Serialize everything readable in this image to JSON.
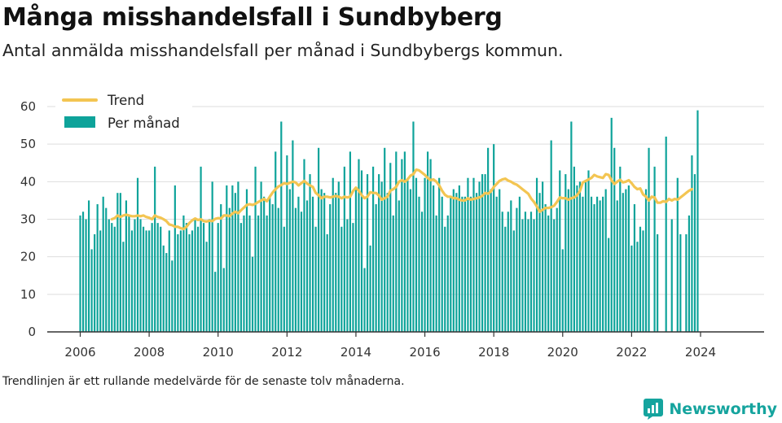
{
  "header": {
    "title": "Många misshandelsfall i Sundbyberg",
    "subtitle": "Antal anmälda misshandelsfall per månad i Sundbybergs kommun."
  },
  "footer": {
    "note": "Trendlinjen är ett rullande medelvärde för de senaste tolv månaderna.",
    "brand": "Newsworthy"
  },
  "colors": {
    "bar": "#0ea39a",
    "trend": "#f3c552",
    "grid": "#dddddd",
    "axis": "#333333",
    "brand": "#15a49e"
  },
  "icons": {
    "brand_logo": "newsworthy-logo-icon"
  },
  "chart_data": {
    "type": "bar",
    "title": "Många misshandelsfall i Sundbyberg",
    "ylim": [
      0,
      60
    ],
    "yticks": [
      0,
      10,
      20,
      30,
      40,
      50,
      60
    ],
    "xticks": [
      "2006",
      "2008",
      "2010",
      "2012",
      "2014",
      "2016",
      "2018",
      "2020",
      "2022",
      "2024"
    ],
    "x_start": "2006-01",
    "grid": "horizontal",
    "legend": {
      "placement": "top-left",
      "entries": [
        {
          "label": "Trend",
          "kind": "line"
        },
        {
          "label": "Per månad",
          "kind": "bar"
        }
      ]
    },
    "series": [
      {
        "name": "Per månad",
        "kind": "bar",
        "values": [
          31,
          32,
          30,
          35,
          22,
          26,
          34,
          27,
          36,
          33,
          30,
          29,
          28,
          37,
          37,
          24,
          35,
          31,
          27,
          30,
          41,
          30,
          28,
          27,
          27,
          29,
          44,
          29,
          28,
          23,
          21,
          27,
          19,
          39,
          26,
          27,
          31,
          29,
          26,
          27,
          30,
          28,
          44,
          29,
          24,
          30,
          40,
          16,
          29,
          34,
          17,
          39,
          33,
          39,
          37,
          40,
          29,
          31,
          38,
          31,
          20,
          44,
          31,
          40,
          36,
          31,
          36,
          34,
          48,
          33,
          56,
          28,
          47,
          38,
          51,
          33,
          36,
          32,
          46,
          35,
          42,
          36,
          28,
          49,
          38,
          37,
          26,
          34,
          41,
          37,
          40,
          28,
          44,
          30,
          48,
          29,
          38,
          46,
          43,
          17,
          42,
          23,
          44,
          34,
          42,
          40,
          49,
          37,
          45,
          31,
          48,
          35,
          46,
          48,
          41,
          38,
          56,
          41,
          36,
          32,
          41,
          48,
          46,
          39,
          31,
          41,
          36,
          28,
          31,
          36,
          38,
          37,
          39,
          36,
          36,
          41,
          36,
          41,
          37,
          40,
          42,
          42,
          49,
          38,
          50,
          36,
          38,
          32,
          28,
          32,
          35,
          27,
          33,
          36,
          30,
          32,
          30,
          32,
          30,
          41,
          37,
          40,
          34,
          31,
          51,
          30,
          33,
          43,
          22,
          42,
          38,
          56,
          44,
          39,
          40,
          36,
          40,
          43,
          36,
          34,
          36,
          35,
          36,
          38,
          25,
          57,
          49,
          35,
          44,
          37,
          38,
          39,
          23,
          34,
          24,
          28,
          27,
          38,
          49,
          0,
          44,
          26,
          0,
          0,
          52,
          0,
          30,
          0,
          41,
          26,
          0,
          26,
          31,
          47,
          42,
          59
        ]
      },
      {
        "name": "Trend",
        "kind": "line",
        "start_index": 11,
        "values": [
          30.0,
          30.3,
          31.0,
          30.6,
          31.0,
          31.2,
          31.0,
          30.8,
          30.8,
          31.0,
          30.8,
          31.0,
          30.6,
          30.4,
          30.0,
          31.0,
          30.6,
          30.4,
          30.0,
          29.5,
          28.6,
          28.4,
          28.0,
          28.0,
          27.6,
          27.4,
          28.0,
          29.0,
          29.7,
          30.2,
          29.8,
          30.0,
          29.5,
          29.4,
          29.6,
          29.5,
          30.1,
          30.3,
          30.2,
          31.0,
          31.0,
          30.8,
          31.5,
          32.0,
          31.6,
          32.4,
          33.1,
          33.8,
          34.0,
          33.8,
          34.1,
          34.6,
          35.0,
          35.4,
          34.8,
          36.0,
          37.1,
          38.0,
          38.7,
          39.1,
          39.6,
          39.4,
          39.7,
          40.0,
          39.8,
          39.0,
          39.6,
          40.2,
          39.5,
          39.0,
          38.6,
          37.0,
          36.4,
          35.6,
          36.0,
          36.0,
          35.8,
          36.0,
          36.2,
          36.0,
          35.6,
          36.0,
          35.8,
          36.0,
          37.5,
          38.4,
          37.6,
          36.4,
          35.6,
          36.0,
          37.2,
          37.0,
          37.0,
          36.3,
          35.2,
          35.6,
          36.0,
          37.6,
          38.0,
          38.6,
          40.0,
          40.4,
          40.0,
          40.6,
          41.6,
          42.0,
          43.2,
          43.0,
          42.4,
          41.8,
          41.0,
          40.4,
          40.6,
          40.0,
          39.0,
          37.6,
          36.5,
          36.0,
          36.0,
          35.6,
          35.6,
          35.2,
          35.0,
          35.0,
          35.6,
          35.2,
          35.4,
          35.6,
          35.8,
          36.2,
          37.0,
          36.8,
          37.4,
          38.6,
          39.4,
          40.2,
          40.6,
          40.8,
          40.3,
          40.0,
          39.5,
          39.2,
          38.6,
          38.0,
          37.4,
          36.8,
          35.5,
          34.6,
          33.4,
          32.0,
          32.5,
          33.0,
          33.0,
          33.2,
          33.6,
          34.6,
          35.8,
          35.6,
          35.6,
          35.2,
          35.6,
          35.8,
          36.4,
          37.5,
          39.8,
          40.2,
          40.6,
          41.0,
          41.8,
          41.4,
          41.2,
          41.0,
          42.0,
          41.8,
          40.4,
          39.4,
          40.0,
          40.5,
          39.8,
          40.0,
          40.4,
          39.6,
          38.6,
          38.0,
          38.2,
          36.6,
          36.0,
          35.0,
          36.0,
          35.8,
          34.4,
          34.4,
          34.8,
          34.6,
          35.4,
          35.0,
          35.4,
          35.2,
          35.8,
          36.4,
          37.0,
          37.6,
          38.0
        ]
      }
    ]
  }
}
